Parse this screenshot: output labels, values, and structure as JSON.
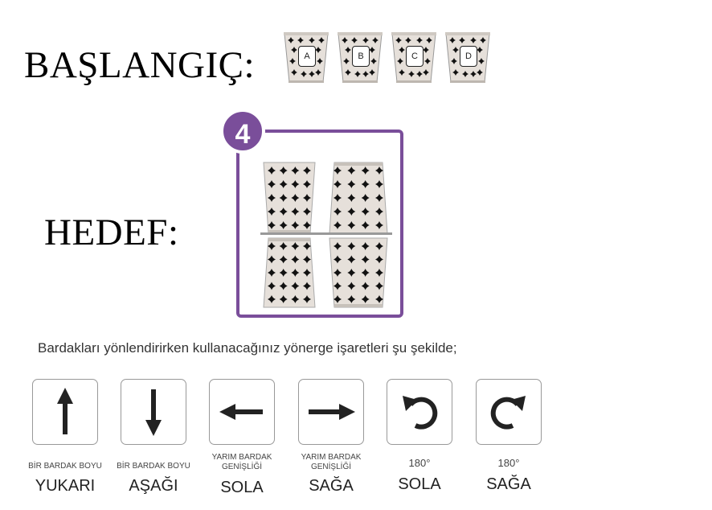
{
  "start_label": "BAŞLANGIÇ:",
  "target_label": "HEDEF:",
  "start_cups": [
    "A",
    "B",
    "C",
    "D"
  ],
  "step_number": "4",
  "accent_color": "#7a4e9a",
  "instruction": "Bardakları yönlendirirken kullanacağınız yönerge işaretleri şu şekilde;",
  "commands": [
    {
      "icon": "arrow-up-icon",
      "line1": "BİR BARDAK BOYU",
      "line2": "",
      "main": "YUKARI"
    },
    {
      "icon": "arrow-down-icon",
      "line1": "BİR BARDAK BOYU",
      "line2": "",
      "main": "AŞAĞI"
    },
    {
      "icon": "arrow-left-icon",
      "line1": "YARIM BARDAK",
      "line2": "GENİŞLİĞİ",
      "main": "SOLA"
    },
    {
      "icon": "arrow-right-icon",
      "line1": "YARIM BARDAK",
      "line2": "GENİŞLİĞİ",
      "main": "SAĞA"
    },
    {
      "icon": "rotate-left-icon",
      "line1": "180°",
      "line2": "",
      "main": "SOLA"
    },
    {
      "icon": "rotate-right-icon",
      "line1": "180°",
      "line2": "",
      "main": "SAĞA"
    }
  ]
}
